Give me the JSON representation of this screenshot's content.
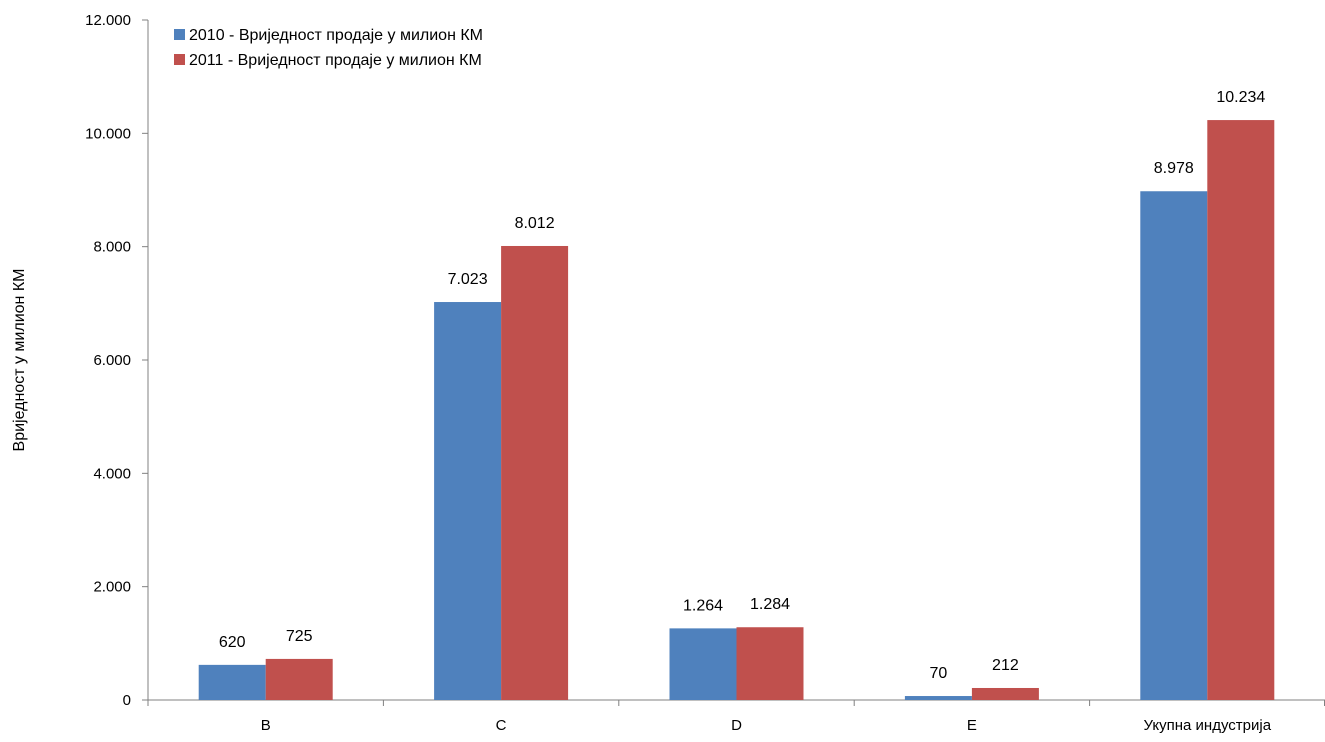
{
  "chart_data": {
    "type": "bar",
    "categories": [
      "B",
      "C",
      "D",
      "E",
      "Укупна индустрија"
    ],
    "series": [
      {
        "name": "2010 - Вриједност продаје у милион КМ",
        "values": [
          620,
          7023,
          1264,
          70,
          8978
        ],
        "labels": [
          "620",
          "7.023",
          "1.264",
          "70",
          "8.978"
        ],
        "color": "#4F81BD"
      },
      {
        "name": "2011 - Вриједност продаје у милион КМ",
        "values": [
          725,
          8012,
          1284,
          212,
          10234
        ],
        "labels": [
          "725",
          "8.012",
          "1.284",
          "212",
          "10.234"
        ],
        "color": "#C0504D"
      }
    ],
    "ylabel": "Вриједност у милион КМ",
    "xlabel": "",
    "title": "",
    "ylim": [
      0,
      12000
    ],
    "yticks": [
      {
        "value": 0,
        "label": "0"
      },
      {
        "value": 2000,
        "label": "2.000"
      },
      {
        "value": 4000,
        "label": "4.000"
      },
      {
        "value": 6000,
        "label": "6.000"
      },
      {
        "value": 8000,
        "label": "8.000"
      },
      {
        "value": 10000,
        "label": "10.000"
      },
      {
        "value": 12000,
        "label": "12.000"
      }
    ],
    "grid": false,
    "legend_position": "top-left"
  }
}
